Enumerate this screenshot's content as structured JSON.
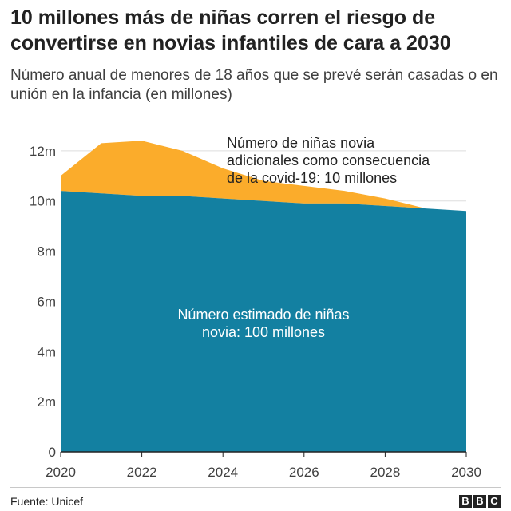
{
  "title": "10 millones más de niñas corren el riesgo de convertirse en novias infantiles de cara a 2030",
  "subtitle": "Número anual de menores de 18 años que se prevé serán casadas o en unión en la infancia (en millones)",
  "source": "Fuente: Unicef",
  "logo": [
    "B",
    "B",
    "C"
  ],
  "colors": {
    "base": "#1380a1",
    "additional": "#fbac2b",
    "grid": "#dddddd",
    "axis": "#222222"
  },
  "chart_data": {
    "type": "area",
    "stacked": true,
    "x": [
      2020,
      2021,
      2022,
      2023,
      2024,
      2025,
      2026,
      2027,
      2028,
      2029,
      2030
    ],
    "series": [
      {
        "values": [
          10.4,
          10.3,
          10.2,
          10.2,
          10.1,
          10.0,
          9.9,
          9.9,
          9.8,
          9.7,
          9.6
        ]
      },
      {
        "values": [
          0.6,
          2.0,
          2.2,
          1.8,
          1.2,
          0.8,
          0.7,
          0.5,
          0.3,
          0.0,
          0.0
        ]
      }
    ],
    "xlim": [
      2020,
      2030
    ],
    "ylim": [
      0,
      12.6
    ],
    "xticks": [
      "2020",
      "2022",
      "2024",
      "2026",
      "2028",
      "2030"
    ],
    "yticks": [
      "0",
      "2m",
      "4m",
      "6m",
      "8m",
      "10m",
      "12m"
    ],
    "grid": true,
    "annotations": [
      {
        "lines": [
          "Número de niñas novia",
          "adicionales como consecuencia",
          "de la covid-19: 10 millones"
        ]
      },
      {
        "lines": [
          "Número estimado de niñas",
          "novia: 100 millones"
        ]
      }
    ]
  }
}
